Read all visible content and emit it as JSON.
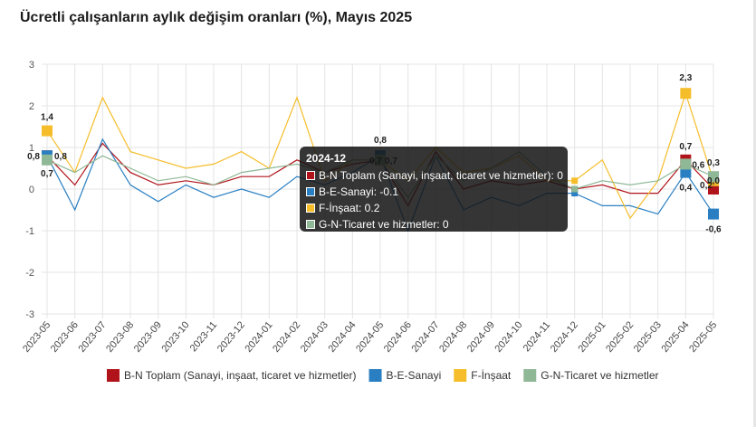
{
  "header": {
    "title": "Ücretli çalışanların aylık değişim oranları (%), Mayıs 2025"
  },
  "chart_data": {
    "type": "line",
    "title": "Ücretli çalışanların aylık değişim oranları (%), Mayıs 2025",
    "xlabel": "",
    "ylabel": "",
    "ylim": [
      -3,
      3
    ],
    "yticks": [
      "3",
      "2",
      "1",
      "0",
      "-1",
      "-2",
      "-3"
    ],
    "grid": true,
    "legend_position": "bottom",
    "categories": [
      "2023-05",
      "2023-06",
      "2023-07",
      "2023-08",
      "2023-09",
      "2023-10",
      "2023-11",
      "2023-12",
      "2024-01",
      "2024-02",
      "2024-03",
      "2024-04",
      "2024-05",
      "2024-06",
      "2024-07",
      "2024-08",
      "2024-09",
      "2024-10",
      "2024-11",
      "2024-12",
      "2025-01",
      "2025-02",
      "2025-03",
      "2025-04",
      "2025-05"
    ],
    "series": [
      {
        "name": "B-N Toplam (Sanayi, inşaat, ticaret ve hizmetler)",
        "color": "#b0141a",
        "values": [
          0.8,
          0.1,
          1.1,
          0.4,
          0.1,
          0.2,
          0.1,
          0.3,
          0.3,
          0.7,
          0.4,
          0.6,
          0.7,
          -0.4,
          0.9,
          0.0,
          0.2,
          0.1,
          0.2,
          0.0,
          0.1,
          -0.1,
          -0.1,
          0.7,
          0.0
        ]
      },
      {
        "name": "B-E-Sanayi",
        "color": "#2a7fc2",
        "values": [
          0.8,
          -0.5,
          1.2,
          0.1,
          -0.3,
          0.1,
          -0.2,
          0.0,
          -0.2,
          0.3,
          0.1,
          0.4,
          0.8,
          -1.0,
          0.8,
          -0.5,
          -0.2,
          -0.4,
          -0.1,
          -0.1,
          -0.4,
          -0.4,
          -0.6,
          0.4,
          -0.6
        ]
      },
      {
        "name": "F-İnşaat",
        "color": "#f5bd2a",
        "values": [
          1.4,
          0.4,
          2.2,
          0.9,
          0.7,
          0.5,
          0.6,
          0.9,
          0.5,
          2.2,
          0.2,
          0.7,
          0.7,
          0.2,
          1.0,
          0.4,
          0.5,
          0.8,
          0.2,
          0.2,
          0.7,
          -0.7,
          0.2,
          2.3,
          0.2
        ]
      },
      {
        "name": "G-N-Ticaret ve hizmetler",
        "color": "#8fb896",
        "values": [
          0.7,
          0.4,
          0.8,
          0.5,
          0.2,
          0.3,
          0.1,
          0.4,
          0.5,
          0.6,
          0.4,
          0.7,
          0.7,
          -0.2,
          0.8,
          0.2,
          0.5,
          0.9,
          0.3,
          0.0,
          0.2,
          0.1,
          0.2,
          0.6,
          0.3
        ]
      }
    ],
    "data_labels": [
      {
        "series": 0,
        "index": 0,
        "text": "0,8"
      },
      {
        "series": 1,
        "index": 0,
        "text": "0,8"
      },
      {
        "series": 2,
        "index": 0,
        "text": "1,4"
      },
      {
        "series": 3,
        "index": 0,
        "text": "0,7"
      },
      {
        "series": 1,
        "index": 12,
        "text": "0,8"
      },
      {
        "series": 0,
        "index": 12,
        "text": "0,7"
      },
      {
        "series": 3,
        "index": 12,
        "text": "0,7"
      },
      {
        "series": 2,
        "index": 23,
        "text": "2,3"
      },
      {
        "series": 0,
        "index": 23,
        "text": "0,7"
      },
      {
        "series": 3,
        "index": 23,
        "text": "0,6"
      },
      {
        "series": 1,
        "index": 23,
        "text": "0,4"
      },
      {
        "series": 3,
        "index": 24,
        "text": "0,3"
      },
      {
        "series": 2,
        "index": 24,
        "text": "0,2"
      },
      {
        "series": 0,
        "index": 24,
        "text": "0,0"
      },
      {
        "series": 1,
        "index": 24,
        "text": "-0,6"
      }
    ],
    "highlight_indices": [
      0,
      12,
      19,
      23,
      24
    ]
  },
  "tooltip": {
    "title": "2024-12",
    "rows": [
      {
        "text": "B-N Toplam (Sanayi, inşaat, ticaret ve hizmetler): 0",
        "color": "#b0141a"
      },
      {
        "text": "B-E-Sanayi: -0.1",
        "color": "#2a7fc2"
      },
      {
        "text": "F-İnşaat: 0.2",
        "color": "#f5bd2a"
      },
      {
        "text": "G-N-Ticaret ve hizmetler: 0",
        "color": "#8fb896"
      }
    ]
  }
}
